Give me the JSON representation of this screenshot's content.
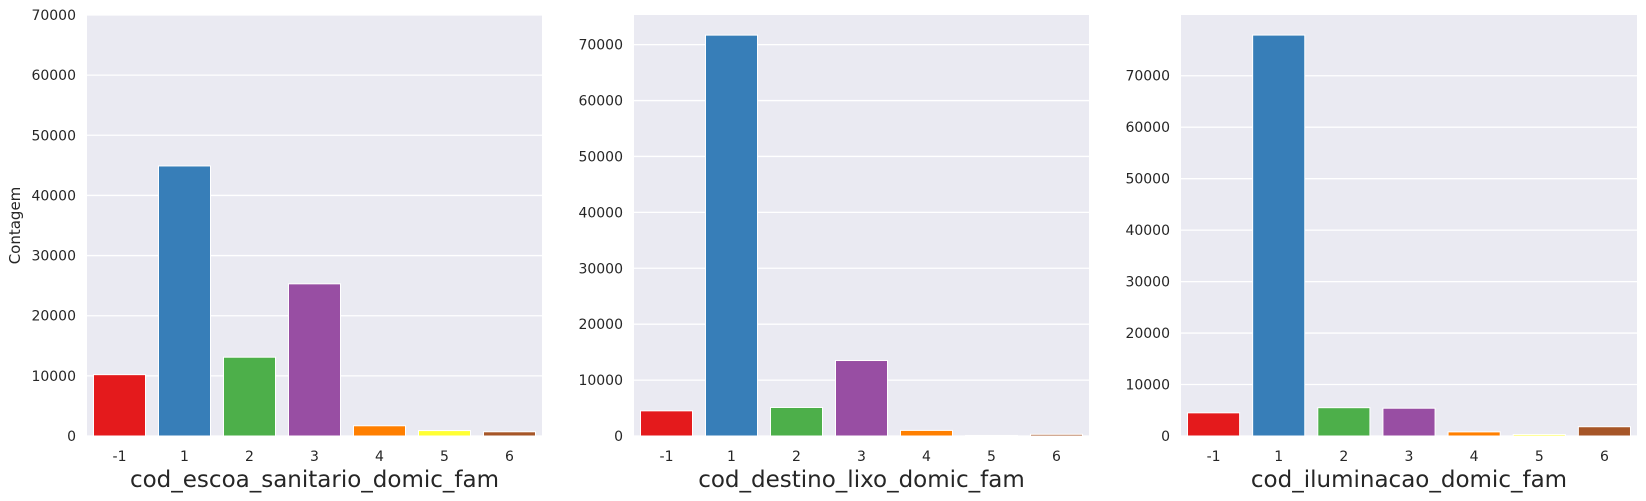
{
  "chart_data": [
    {
      "type": "bar",
      "xlabel": "cod_escoa_sanitario_domic_fam",
      "ylabel": "Contagem",
      "categories": [
        "-1",
        "1",
        "2",
        "3",
        "4",
        "5",
        "6"
      ],
      "values": [
        10200,
        44900,
        13100,
        25300,
        1700,
        900,
        700
      ],
      "ylim": [
        0,
        70000
      ],
      "yticks": [
        0,
        10000,
        20000,
        30000,
        40000,
        50000,
        60000,
        70000
      ],
      "ytick_labels": [
        "0",
        "10000",
        "20000",
        "30000",
        "40000",
        "50000",
        "60000",
        "70000"
      ],
      "colors": [
        "#e41a1c",
        "#377eb8",
        "#4daf4a",
        "#984ea3",
        "#ff7f00",
        "#ffff33",
        "#a65628"
      ],
      "grid": true
    },
    {
      "type": "bar",
      "xlabel": "cod_destino_lixo_domic_fam",
      "ylabel": "",
      "categories": [
        "-1",
        "1",
        "2",
        "3",
        "4",
        "5",
        "6"
      ],
      "values": [
        4500,
        71700,
        5100,
        13500,
        1000,
        100,
        300
      ],
      "ylim": [
        0,
        75300
      ],
      "yticks": [
        0,
        10000,
        20000,
        30000,
        40000,
        50000,
        60000,
        70000
      ],
      "ytick_labels": [
        "0",
        "10000",
        "20000",
        "30000",
        "40000",
        "50000",
        "60000",
        "70000"
      ],
      "colors": [
        "#e41a1c",
        "#377eb8",
        "#4daf4a",
        "#984ea3",
        "#ff7f00",
        "#ffff33",
        "#a65628"
      ],
      "grid": true
    },
    {
      "type": "bar",
      "xlabel": "cod_iluminacao_domic_fam",
      "ylabel": "",
      "categories": [
        "-1",
        "1",
        "2",
        "3",
        "4",
        "5",
        "6"
      ],
      "values": [
        4500,
        77900,
        5500,
        5400,
        800,
        300,
        1800
      ],
      "ylim": [
        0,
        81800
      ],
      "yticks": [
        0,
        10000,
        20000,
        30000,
        40000,
        50000,
        60000,
        70000
      ],
      "ytick_labels": [
        "0",
        "10000",
        "20000",
        "30000",
        "40000",
        "50000",
        "60000",
        "70000"
      ],
      "colors": [
        "#e41a1c",
        "#377eb8",
        "#4daf4a",
        "#984ea3",
        "#ff7f00",
        "#ffff33",
        "#a65628"
      ],
      "grid": true
    }
  ]
}
